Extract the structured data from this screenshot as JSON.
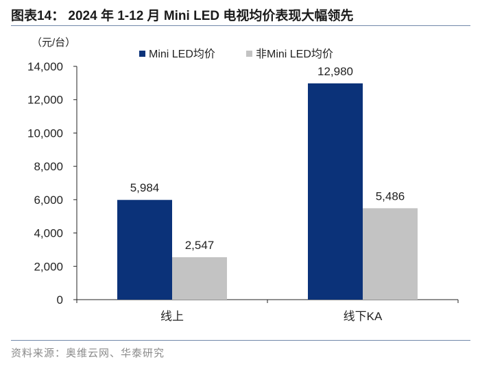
{
  "title": "图表14：  2024 年 1-12 月 Mini LED  电视均价表现大幅领先",
  "source": "资料来源：奥维云网、华泰研究",
  "colors": {
    "series1": "#0b3279",
    "series2": "#c3c3c3",
    "axis": "#222222",
    "rule": "#6f86a8"
  },
  "chart_data": {
    "type": "bar",
    "unit_label": "（元/台）",
    "categories": [
      "线上",
      "线下KA"
    ],
    "series": [
      {
        "name": "Mini LED均价",
        "values": [
          5984,
          12980
        ],
        "labels": [
          "5,984",
          "12,980"
        ]
      },
      {
        "name": "非Mini LED均价",
        "values": [
          2547,
          5486
        ],
        "labels": [
          "2,547",
          "5,486"
        ]
      }
    ],
    "ylim": [
      0,
      14000
    ],
    "yticks": [
      0,
      2000,
      4000,
      6000,
      8000,
      10000,
      12000,
      14000
    ],
    "ytick_labels": [
      "0",
      "2,000",
      "4,000",
      "6,000",
      "8,000",
      "10,000",
      "12,000",
      "14,000"
    ],
    "xlabel": "",
    "ylabel": "",
    "grid": false,
    "legend_position": "top"
  }
}
